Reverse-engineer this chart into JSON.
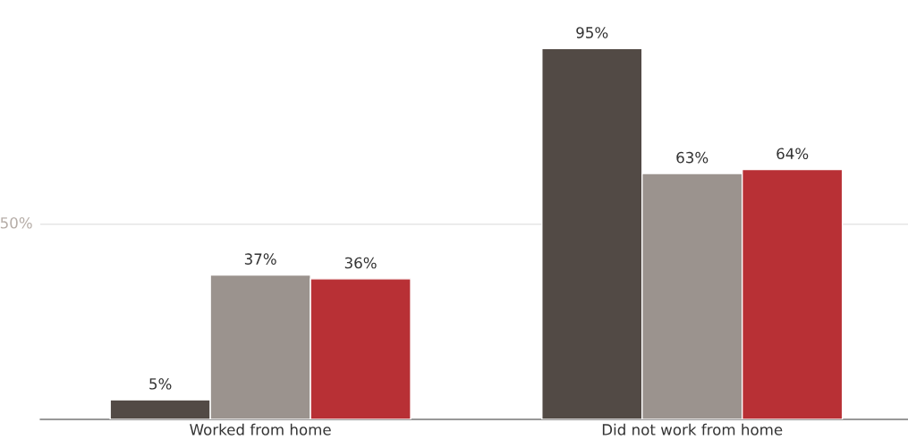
{
  "chart_data": {
    "type": "bar",
    "categories": [
      "Worked from home",
      "Did not work from home"
    ],
    "series": [
      {
        "color": "#524a45",
        "values": [
          5,
          95
        ],
        "value_labels": [
          "5%",
          "95%"
        ]
      },
      {
        "color": "#9b938e",
        "values": [
          37,
          63
        ],
        "value_labels": [
          "37%",
          "63%"
        ]
      },
      {
        "color": "#b83035",
        "values": [
          36,
          64
        ],
        "value_labels": [
          "36%",
          "64%"
        ]
      }
    ],
    "ref_lines": [
      {
        "axis": "y",
        "value": 50,
        "label": "50%",
        "color": "#e5e5e5"
      }
    ]
  }
}
